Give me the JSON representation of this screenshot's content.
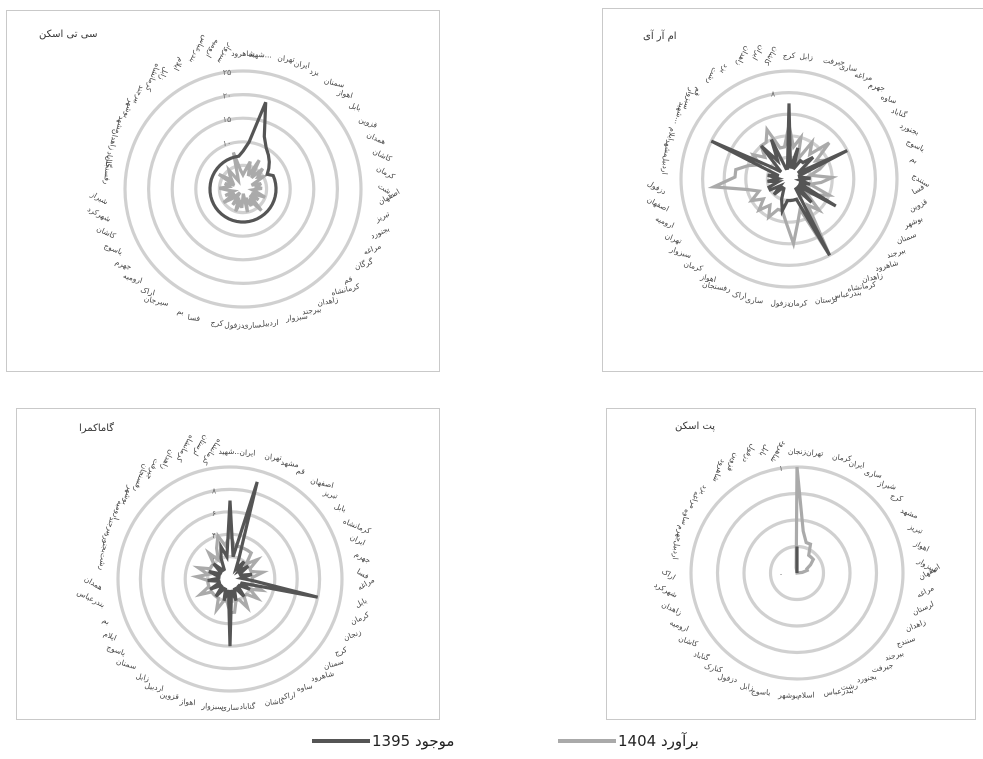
{
  "chart_data": [
    {
      "type": "radar",
      "title": "سی تی اسکن",
      "rmax": 25,
      "ticks": [
        0,
        5,
        10,
        15,
        20,
        25
      ],
      "tick_labels": [
        "",
        "",
        "۱۰",
        "۱۵",
        "۲۰",
        "۲۵"
      ],
      "categories": [
        "شاهرود",
        "شهید...",
        "تهران",
        "ایران",
        "یزد",
        "سمنان",
        "اهواز",
        "بابل",
        "قزوین",
        "همدان",
        "کاشان",
        "کرمان",
        "رشت",
        "اصفهان",
        "تبریز",
        "بجنورد",
        "مراغه",
        "گرگان",
        "قم",
        "کرمانشاه",
        "زاهدان",
        "بیرجند",
        "سبزوار",
        "اردبیل",
        "ساری",
        "دزفول",
        "کرج",
        "فسا",
        "بم",
        "سیرجان",
        "اراک",
        "ارومیه",
        "جهرم",
        "یاسوج",
        "کاشان",
        "شهرکرد",
        "شیراز",
        "رفسنجان",
        "گناباد",
        "زاهدان",
        "مشهد",
        "بوشهر",
        "بیرجند",
        "کرمانشاه",
        "زابل",
        "ایلام",
        "بندرعباس",
        "ارومیه",
        "سبزوار"
      ],
      "series": [
        {
          "name": "موجود 1395",
          "color": "#555555",
          "values": [
            8,
            10,
            19,
            12,
            10,
            9,
            8,
            7,
            6,
            7,
            7,
            7,
            7,
            7,
            7,
            7,
            7,
            7,
            7,
            7,
            7,
            7,
            7,
            7,
            7,
            7,
            7,
            7,
            7,
            7,
            7,
            7,
            7,
            7,
            7,
            7,
            7,
            7,
            7,
            7,
            7,
            7,
            7,
            7,
            7,
            7,
            7,
            7,
            7
          ]
        },
        {
          "name": "برآورد 1404",
          "color": "#aaaaaa",
          "values": [
            3,
            4,
            6,
            3,
            7,
            3,
            6,
            4,
            5,
            2,
            4,
            3,
            4,
            2,
            3,
            5,
            2,
            4,
            2,
            6,
            3,
            4,
            2,
            5,
            1,
            4,
            3,
            5,
            2,
            4,
            1,
            3,
            5,
            2,
            4,
            2,
            3,
            5,
            3,
            4,
            2,
            6,
            3,
            4,
            5,
            2,
            3,
            8,
            4
          ]
        }
      ]
    },
    {
      "type": "radar",
      "title": "ام آر آی",
      "rmax": 10,
      "ticks": [
        0,
        2,
        4,
        6,
        8,
        10
      ],
      "tick_labels": [
        "",
        "۲",
        "",
        "",
        "۸",
        ""
      ],
      "categories": [
        "کرج",
        "زابل",
        "جیرفت",
        "ساری",
        "مراغه",
        "جهرم",
        "ساوه",
        "گناباد",
        "بجنورد",
        "یاسوج",
        "بم",
        "سنندج",
        "فسا",
        "قزوین",
        "بوشهر",
        "سمنان",
        "بیرجند",
        "شاهرود",
        "زاهدان",
        "کرمانشاه",
        "بندرعباس",
        "لرستان",
        "کرمان",
        "دزفول",
        "ساری",
        "اراک",
        "رفسنجان",
        "اهواز",
        "کرمان",
        "سبزوار",
        "تهران",
        "ارومیه",
        "اصفهان",
        "دزفول",
        "اردبیل",
        "مشهد",
        "ایلام",
        "شهید...",
        "سبزوار",
        "قم",
        "رشت",
        "یزد",
        "زاهدان",
        "ایران",
        "کاشان"
      ],
      "series": [
        {
          "name": "موجود 1395",
          "color": "#555555",
          "values": [
            7,
            1,
            3,
            1,
            2,
            2,
            3,
            1,
            6,
            1,
            1,
            2,
            1,
            2,
            1,
            5,
            1,
            3,
            1,
            8,
            2,
            2,
            2,
            2,
            3,
            2,
            1,
            1,
            2,
            1,
            2,
            2,
            1,
            2,
            1,
            2,
            1,
            8,
            2,
            1,
            4,
            2,
            4,
            1,
            1
          ]
        },
        {
          "name": "برآورد 1404",
          "color": "#aaaaaa",
          "values": [
            5,
            3,
            4,
            2,
            4,
            3,
            5,
            3,
            4,
            3,
            2,
            4,
            3,
            2,
            4,
            3,
            2,
            4,
            3,
            8,
            3,
            4,
            6,
            4,
            3,
            3,
            4,
            3,
            4,
            3,
            4,
            3,
            4,
            7,
            5,
            5,
            4,
            3,
            4,
            3,
            4,
            4,
            5,
            3,
            3
          ]
        }
      ]
    },
    {
      "type": "radar",
      "title": "گاماکمرا",
      "rmax": 10,
      "ticks": [
        0,
        2,
        4,
        6,
        8,
        10
      ],
      "tick_labels": [
        "",
        "۲",
        "۴",
        "۶",
        "۸",
        ""
      ],
      "categories": [
        "شهید...",
        "ایران",
        "تهران",
        "مشهد",
        "قم",
        "اصفهان",
        "تبریز",
        "بابل",
        "کرمانشاه",
        "ایران",
        "جهرم",
        "فسا",
        "مراغه",
        "بابل",
        "کرمان",
        "زنجان",
        "کرج",
        "سمنان",
        "شاهرود",
        "ساوه",
        "اراک",
        "کاشان",
        "گناباد",
        "ساری",
        "سبزوار",
        "اهواز",
        "قزوین",
        "اردبیل",
        "زابل",
        "سمنان",
        "یاسوج",
        "ایلام",
        "بم",
        "بندرعباس",
        "همدان",
        "رشت",
        "بجنورد",
        "بیرجند",
        "ارومیه",
        "بوشهر",
        "رفسنجان",
        "جیرفت",
        "زاهدان",
        "کرمانشاه",
        "لرستان",
        "کرمانشاه"
      ],
      "series": [
        {
          "name": "موجود 1395",
          "color": "#555555",
          "values": [
            7,
            2,
            9,
            2,
            1,
            2,
            1,
            2,
            1,
            1,
            2,
            1,
            2,
            8,
            1,
            2,
            1,
            1,
            2,
            1,
            1,
            2,
            1,
            6,
            1,
            2,
            1,
            1,
            2,
            1,
            1,
            2,
            1,
            1,
            2,
            1,
            1,
            2,
            1,
            1,
            2,
            1,
            1,
            2,
            3,
            2
          ]
        },
        {
          "name": "برآورد 1404",
          "color": "#aaaaaa",
          "values": [
            4,
            3,
            3,
            3,
            3,
            3,
            2,
            3,
            2,
            2,
            3,
            2,
            2,
            2,
            3,
            2,
            3,
            2,
            2,
            3,
            2,
            2,
            3,
            3,
            2,
            2,
            3,
            2,
            2,
            2,
            2,
            3,
            2,
            2,
            2,
            3,
            2,
            3,
            2,
            2,
            2,
            3,
            2,
            3,
            4,
            3
          ]
        }
      ]
    },
    {
      "type": "radar",
      "title": "پت اسکن",
      "rmax": 1,
      "ticks": [
        0,
        0.25,
        0.5,
        0.75,
        1
      ],
      "tick_labels": [
        "۰",
        "",
        "",
        "",
        "۱"
      ],
      "categories": [
        "زنجان",
        "تهران",
        "کرمان",
        "ایران",
        "ساری",
        "شیراز",
        "کرج",
        "مشهد",
        "تبریز",
        "اهواز",
        "سبزوار",
        "اصفهان",
        "مراغه",
        "لرستان",
        "زاهدان",
        "سنندج",
        "بیرجند",
        "جیرفت",
        "بجنورد",
        "رشت",
        "بندرعباس",
        "اسلام",
        "بوشهر",
        "یاسوج",
        "زابل",
        "دزفول",
        "کنارک",
        "گناباد",
        "کاشان",
        "ارومیه",
        "زاهدان",
        "شهرکرد",
        "اراک",
        "اردبیل",
        "جهرم",
        "ساوه",
        "مراغه",
        "یزد",
        "شاهرود",
        "قزوین",
        "دزفول",
        "بابل",
        "شاهرود"
      ],
      "series": [
        {
          "name": "موجود 1395",
          "color": "#555555",
          "values": [
            0.25,
            0,
            0,
            0,
            0,
            0,
            0,
            0,
            0,
            0,
            0,
            0,
            0,
            0,
            0,
            0,
            0,
            0,
            0,
            0,
            0,
            0,
            0,
            0,
            0,
            0,
            0,
            0,
            0,
            0,
            0,
            0,
            0,
            0,
            0,
            0,
            0,
            0,
            0,
            0,
            0,
            0,
            0
          ]
        },
        {
          "name": "برآورد 1404",
          "color": "#aaaaaa",
          "values": [
            1,
            0.4,
            0.3,
            0.3,
            0.2,
            0.2,
            0.2,
            0.15,
            0.1,
            0.1,
            0.05,
            0,
            0,
            0,
            0,
            0,
            0,
            0,
            0,
            0,
            0,
            0,
            0,
            0,
            0,
            0,
            0,
            0,
            0,
            0,
            0,
            0,
            0,
            0,
            0,
            0,
            0,
            0,
            0,
            0,
            0,
            0,
            0.05
          ]
        }
      ]
    }
  ],
  "legend": {
    "items": [
      {
        "label": "موجود 1395",
        "color": "#555555"
      },
      {
        "label": "برآورد 1404",
        "color": "#aaaaaa"
      }
    ]
  }
}
